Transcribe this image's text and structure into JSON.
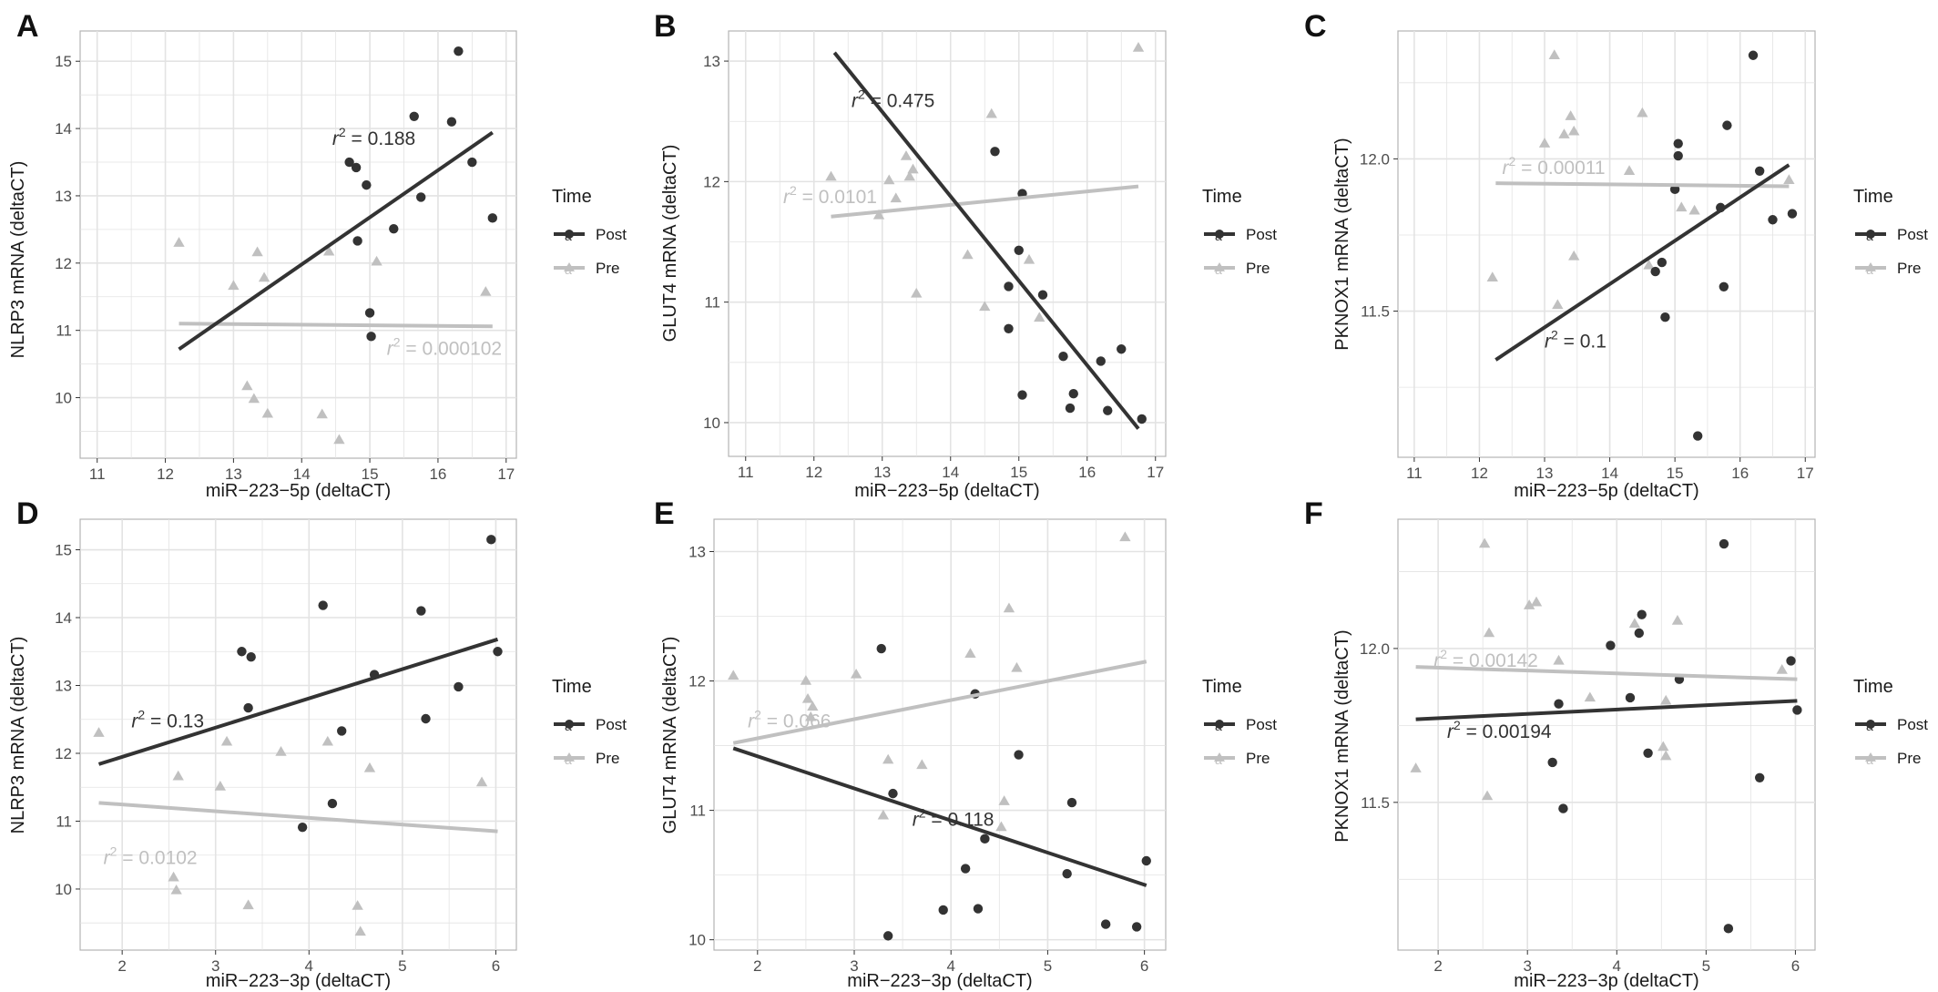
{
  "colors": {
    "post": "#333333",
    "pre": "#c0c0c0",
    "grid": "#e3e3e3",
    "panel_border": "#b3b3b3"
  },
  "legend": {
    "title": "Time",
    "labels": [
      "Post",
      "Pre"
    ],
    "key_glyph": "a"
  },
  "chart_data": [
    {
      "panel": "A",
      "type": "scatter",
      "xlabel": "miR−223−5p (deltaCT)",
      "ylabel": "NLRP3 mRNA (deltaCT)",
      "xlim": [
        10.75,
        17.15
      ],
      "ylim": [
        9.1,
        15.45
      ],
      "xticks": [
        11,
        12,
        13,
        14,
        15,
        16,
        17
      ],
      "yticks": [
        10,
        11,
        12,
        13,
        14,
        15
      ],
      "grid": true,
      "series": [
        {
          "name": "Post",
          "marker": "circle",
          "points": [
            [
              14.7,
              13.5
            ],
            [
              14.8,
              13.42
            ],
            [
              14.95,
              13.16
            ],
            [
              14.82,
              12.33
            ],
            [
              15.0,
              11.26
            ],
            [
              15.02,
              10.91
            ],
            [
              15.35,
              12.51
            ],
            [
              15.65,
              14.18
            ],
            [
              15.75,
              12.98
            ],
            [
              16.2,
              14.1
            ],
            [
              16.3,
              15.15
            ],
            [
              16.5,
              13.5
            ],
            [
              16.8,
              12.67
            ]
          ],
          "fit": [
            [
              12.2,
              10.72
            ],
            [
              16.8,
              13.94
            ]
          ],
          "r2_label": "0.188",
          "label_at": [
            14.45,
            13.76
          ]
        },
        {
          "name": "Pre",
          "marker": "triangle",
          "points": [
            [
              12.2,
              12.3
            ],
            [
              13.0,
              11.66
            ],
            [
              13.2,
              10.17
            ],
            [
              13.3,
              9.98
            ],
            [
              13.35,
              12.16
            ],
            [
              13.45,
              11.78
            ],
            [
              13.5,
              9.76
            ],
            [
              14.3,
              9.75
            ],
            [
              14.4,
              12.17
            ],
            [
              14.55,
              9.37
            ],
            [
              15.1,
              12.02
            ],
            [
              16.7,
              11.57
            ]
          ],
          "fit": [
            [
              12.2,
              11.1
            ],
            [
              16.8,
              11.06
            ]
          ],
          "r2_label": "0.000102",
          "label_at": [
            15.25,
            10.64
          ]
        }
      ]
    },
    {
      "panel": "B",
      "type": "scatter",
      "xlabel": "miR−223−5p (deltaCT)",
      "ylabel": "GLUT4 mRNA (deltaCT)",
      "xlim": [
        10.75,
        17.15
      ],
      "ylim": [
        9.72,
        13.25
      ],
      "xticks": [
        11,
        12,
        13,
        14,
        15,
        16,
        17
      ],
      "yticks": [
        10,
        11,
        12,
        13
      ],
      "grid": true,
      "series": [
        {
          "name": "Post",
          "marker": "circle",
          "points": [
            [
              14.65,
              12.25
            ],
            [
              15.05,
              11.9
            ],
            [
              15.0,
              11.43
            ],
            [
              14.85,
              11.13
            ],
            [
              14.85,
              10.78
            ],
            [
              15.05,
              10.23
            ],
            [
              15.35,
              11.06
            ],
            [
              15.65,
              10.55
            ],
            [
              15.75,
              10.12
            ],
            [
              15.8,
              10.24
            ],
            [
              16.2,
              10.51
            ],
            [
              16.3,
              10.1
            ],
            [
              16.5,
              10.61
            ],
            [
              16.8,
              10.03
            ]
          ],
          "fit": [
            [
              12.3,
              13.07
            ],
            [
              16.75,
              9.95
            ]
          ],
          "r2_label": "0.475",
          "label_at": [
            12.55,
            12.62
          ]
        },
        {
          "name": "Pre",
          "marker": "triangle",
          "points": [
            [
              12.25,
              12.04
            ],
            [
              12.95,
              11.72
            ],
            [
              13.1,
              12.01
            ],
            [
              13.2,
              11.86
            ],
            [
              13.35,
              12.21
            ],
            [
              13.4,
              12.04
            ],
            [
              13.45,
              12.1
            ],
            [
              13.5,
              11.07
            ],
            [
              14.25,
              11.39
            ],
            [
              14.5,
              10.96
            ],
            [
              14.6,
              12.56
            ],
            [
              15.15,
              11.35
            ],
            [
              15.3,
              10.87
            ],
            [
              16.75,
              13.11
            ]
          ],
          "fit": [
            [
              12.25,
              11.71
            ],
            [
              16.75,
              11.96
            ]
          ],
          "r2_label": "0.0101",
          "label_at": [
            11.55,
            11.82
          ]
        }
      ]
    },
    {
      "panel": "C",
      "type": "scatter",
      "xlabel": "miR−223−5p (deltaCT)",
      "ylabel": "PKNOX1 mRNA (deltaCT)",
      "xlim": [
        10.75,
        17.15
      ],
      "ylim": [
        11.02,
        12.42
      ],
      "xticks": [
        11,
        12,
        13,
        14,
        15,
        16,
        17
      ],
      "yticks": [
        11.5,
        12.0
      ],
      "grid": true,
      "series": [
        {
          "name": "Post",
          "marker": "circle",
          "points": [
            [
              14.7,
              11.63
            ],
            [
              14.8,
              11.66
            ],
            [
              14.85,
              11.48
            ],
            [
              15.0,
              11.9
            ],
            [
              15.05,
              12.05
            ],
            [
              15.05,
              12.01
            ],
            [
              15.35,
              11.09
            ],
            [
              15.7,
              11.84
            ],
            [
              15.75,
              11.58
            ],
            [
              15.8,
              12.11
            ],
            [
              16.2,
              12.34
            ],
            [
              16.3,
              11.96
            ],
            [
              16.5,
              11.8
            ],
            [
              16.8,
              11.82
            ]
          ],
          "fit": [
            [
              12.25,
              11.34
            ],
            [
              16.75,
              11.98
            ]
          ],
          "r2_label": "0.1",
          "label_at": [
            13.0,
            11.38
          ]
        },
        {
          "name": "Pre",
          "marker": "triangle",
          "points": [
            [
              12.2,
              11.61
            ],
            [
              13.0,
              12.05
            ],
            [
              13.15,
              12.34
            ],
            [
              13.2,
              11.52
            ],
            [
              13.3,
              12.08
            ],
            [
              13.4,
              12.14
            ],
            [
              13.45,
              12.09
            ],
            [
              13.45,
              11.68
            ],
            [
              14.3,
              11.96
            ],
            [
              14.5,
              12.15
            ],
            [
              14.6,
              11.65
            ],
            [
              15.1,
              11.84
            ],
            [
              15.3,
              11.83
            ],
            [
              16.75,
              11.93
            ]
          ],
          "fit": [
            [
              12.25,
              11.92
            ],
            [
              16.75,
              11.91
            ]
          ],
          "r2_label": "0.00011",
          "label_at": [
            12.35,
            11.95
          ]
        }
      ]
    },
    {
      "panel": "D",
      "type": "scatter",
      "xlabel": "miR−223−3p (deltaCT)",
      "ylabel": "NLRP3 mRNA (deltaCT)",
      "xlim": [
        1.55,
        6.22
      ],
      "ylim": [
        9.1,
        15.45
      ],
      "xticks": [
        2,
        3,
        4,
        5,
        6
      ],
      "yticks": [
        10,
        11,
        12,
        13,
        14,
        15
      ],
      "grid": true,
      "series": [
        {
          "name": "Post",
          "marker": "circle",
          "points": [
            [
              3.28,
              13.5
            ],
            [
              3.38,
              13.42
            ],
            [
              3.35,
              12.67
            ],
            [
              3.93,
              10.91
            ],
            [
              4.15,
              14.18
            ],
            [
              4.25,
              11.26
            ],
            [
              4.35,
              12.33
            ],
            [
              4.7,
              13.16
            ],
            [
              5.2,
              14.1
            ],
            [
              5.25,
              12.51
            ],
            [
              5.6,
              12.98
            ],
            [
              5.95,
              15.15
            ],
            [
              6.02,
              13.5
            ]
          ],
          "fit": [
            [
              1.75,
              11.84
            ],
            [
              6.02,
              13.68
            ]
          ],
          "r2_label": "0.13",
          "label_at": [
            2.1,
            12.38
          ]
        },
        {
          "name": "Pre",
          "marker": "triangle",
          "points": [
            [
              1.75,
              12.3
            ],
            [
              2.55,
              10.17
            ],
            [
              2.58,
              9.98
            ],
            [
              2.6,
              11.66
            ],
            [
              3.05,
              11.51
            ],
            [
              3.12,
              12.17
            ],
            [
              3.35,
              9.76
            ],
            [
              3.7,
              12.02
            ],
            [
              4.2,
              12.17
            ],
            [
              4.52,
              9.75
            ],
            [
              4.55,
              9.37
            ],
            [
              4.65,
              11.78
            ],
            [
              5.85,
              11.57
            ]
          ],
          "fit": [
            [
              1.75,
              11.27
            ],
            [
              6.02,
              10.85
            ]
          ],
          "r2_label": "0.0102",
          "label_at": [
            1.8,
            10.37
          ]
        }
      ]
    },
    {
      "panel": "E",
      "type": "scatter",
      "xlabel": "miR−223−3p (deltaCT)",
      "ylabel": "GLUT4 mRNA (deltaCT)",
      "xlim": [
        1.55,
        6.22
      ],
      "ylim": [
        9.92,
        13.25
      ],
      "xticks": [
        2,
        3,
        4,
        5,
        6
      ],
      "yticks": [
        10,
        11,
        12,
        13
      ],
      "grid": true,
      "series": [
        {
          "name": "Post",
          "marker": "circle",
          "points": [
            [
              3.28,
              12.25
            ],
            [
              3.35,
              10.03
            ],
            [
              3.4,
              11.13
            ],
            [
              3.92,
              10.23
            ],
            [
              4.15,
              10.55
            ],
            [
              4.25,
              11.9
            ],
            [
              4.28,
              10.24
            ],
            [
              4.35,
              10.78
            ],
            [
              4.7,
              11.43
            ],
            [
              5.2,
              10.51
            ],
            [
              5.25,
              11.06
            ],
            [
              5.6,
              10.12
            ],
            [
              5.92,
              10.1
            ],
            [
              6.02,
              10.61
            ]
          ],
          "fit": [
            [
              1.75,
              11.48
            ],
            [
              6.02,
              10.42
            ]
          ],
          "r2_label": "0.118",
          "label_at": [
            3.6,
            10.88
          ]
        },
        {
          "name": "Pre",
          "marker": "triangle",
          "points": [
            [
              1.75,
              12.04
            ],
            [
              2.5,
              12.0
            ],
            [
              2.52,
              11.86
            ],
            [
              2.55,
              11.72
            ],
            [
              2.57,
              11.8
            ],
            [
              3.02,
              12.05
            ],
            [
              3.3,
              10.96
            ],
            [
              3.35,
              11.39
            ],
            [
              3.7,
              11.35
            ],
            [
              4.2,
              12.21
            ],
            [
              4.52,
              10.87
            ],
            [
              4.55,
              11.07
            ],
            [
              4.6,
              12.56
            ],
            [
              4.68,
              12.1
            ],
            [
              5.8,
              13.11
            ]
          ],
          "fit": [
            [
              1.75,
              11.52
            ],
            [
              6.02,
              12.15
            ]
          ],
          "r2_label": "0.066",
          "label_at": [
            1.9,
            11.64
          ]
        }
      ]
    },
    {
      "panel": "F",
      "type": "scatter",
      "xlabel": "miR−223−3p (deltaCT)",
      "ylabel": "PKNOX1 mRNA (deltaCT)",
      "xlim": [
        1.55,
        6.22
      ],
      "ylim": [
        11.02,
        12.42
      ],
      "xticks": [
        2,
        3,
        4,
        5,
        6
      ],
      "yticks": [
        11.5,
        12.0
      ],
      "grid": true,
      "series": [
        {
          "name": "Post",
          "marker": "circle",
          "points": [
            [
              3.28,
              11.63
            ],
            [
              3.35,
              11.82
            ],
            [
              3.4,
              11.48
            ],
            [
              3.93,
              12.01
            ],
            [
              4.15,
              11.84
            ],
            [
              4.25,
              12.05
            ],
            [
              4.28,
              12.11
            ],
            [
              4.35,
              11.66
            ],
            [
              4.7,
              11.9
            ],
            [
              5.2,
              12.34
            ],
            [
              5.25,
              11.09
            ],
            [
              5.6,
              11.58
            ],
            [
              5.95,
              11.96
            ],
            [
              6.02,
              11.8
            ]
          ],
          "fit": [
            [
              1.75,
              11.77
            ],
            [
              6.02,
              11.83
            ]
          ],
          "r2_label": "0.00194",
          "label_at": [
            2.1,
            11.71
          ]
        },
        {
          "name": "Pre",
          "marker": "triangle",
          "points": [
            [
              1.75,
              11.61
            ],
            [
              2.52,
              12.34
            ],
            [
              2.55,
              11.52
            ],
            [
              2.57,
              12.05
            ],
            [
              3.02,
              12.14
            ],
            [
              3.1,
              12.15
            ],
            [
              3.35,
              11.96
            ],
            [
              3.7,
              11.84
            ],
            [
              4.2,
              12.08
            ],
            [
              4.52,
              11.68
            ],
            [
              4.55,
              11.65
            ],
            [
              4.55,
              11.83
            ],
            [
              4.68,
              12.09
            ],
            [
              5.85,
              11.93
            ]
          ],
          "fit": [
            [
              1.75,
              11.94
            ],
            [
              6.02,
              11.9
            ]
          ],
          "r2_label": "0.00142",
          "label_at": [
            1.95,
            11.94
          ]
        }
      ]
    }
  ]
}
